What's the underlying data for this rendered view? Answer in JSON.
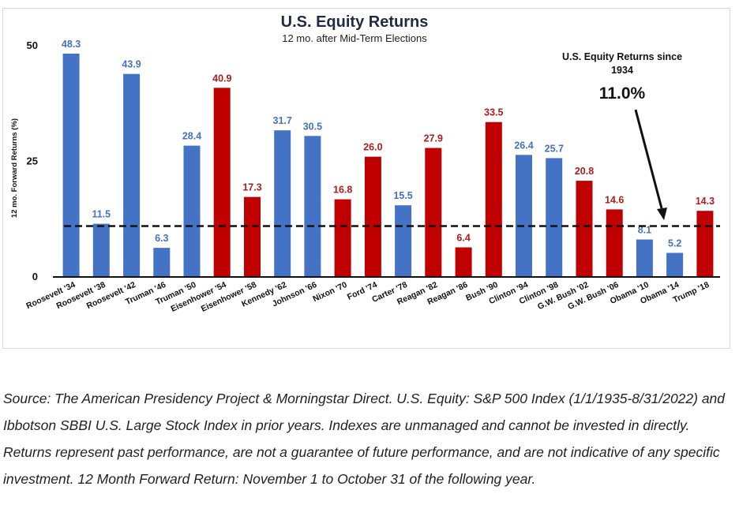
{
  "chart_data": {
    "type": "bar",
    "title": "U.S. Equity Returns",
    "subtitle": "12 mo. after Mid-Term Elections",
    "ylabel": "12 mo. Forward Returns (%)",
    "xlabel": "",
    "ylim": [
      0,
      50
    ],
    "yticks": [
      "0",
      "25",
      "50"
    ],
    "grid": false,
    "categories": [
      "Roosevelt '34",
      "Roosevelt '38",
      "Roosevelt '42",
      "Truman '46",
      "Truman '50",
      "Eisenhower '54",
      "Eisenhower '58",
      "Kennedy '62",
      "Johnson '66",
      "Nixon '70",
      "Ford '74",
      "Carter '78",
      "Reagan '82",
      "Reagan '86",
      "Bush '90",
      "Clinton '94",
      "Clinton '98",
      "G.W. Bush '02",
      "G.W. Bush '06",
      "Obama '10",
      "Obama '14",
      "Trump '18"
    ],
    "values": [
      48.3,
      11.5,
      43.9,
      6.3,
      28.4,
      40.9,
      17.3,
      31.7,
      30.5,
      16.8,
      26.0,
      15.5,
      27.9,
      6.4,
      33.5,
      26.4,
      25.7,
      20.8,
      14.6,
      8.1,
      5.2,
      14.3
    ],
    "labels": [
      "48.3",
      "11.5",
      "43.9",
      "6.3",
      "28.4",
      "40.9",
      "17.3",
      "31.7",
      "30.5",
      "16.8",
      "26.0",
      "15.5",
      "27.9",
      "6.4",
      "33.5",
      "26.4",
      "25.7",
      "20.8",
      "14.6",
      "8.1",
      "5.2",
      "14.3"
    ],
    "party": [
      "D",
      "D",
      "D",
      "D",
      "D",
      "R",
      "R",
      "D",
      "D",
      "R",
      "R",
      "D",
      "R",
      "R",
      "R",
      "D",
      "D",
      "R",
      "R",
      "D",
      "D",
      "R"
    ],
    "colors": {
      "D": "#4472c4",
      "R": "#c00000"
    },
    "label_colors": {
      "D": "#4472c4",
      "R": "#b01c1c"
    },
    "reference_line": {
      "value": 11.0,
      "style": "dashed"
    },
    "annotation": {
      "line1": "U.S. Equity Returns since",
      "line2": "1934",
      "value": "11.0%"
    }
  },
  "source_note": "Source: The American Presidency Project & Morningstar Direct. U.S. Equity: S&P 500 Index (1/1/1935-8/31/2022) and Ibbotson SBBI U.S. Large Stock Index in prior years. Indexes are unmanaged and cannot be invested in directly. Returns represent past performance, are not a guarantee of future performance, and are not indicative of any specific investment. 12 Month Forward Return: November 1 to October 31 of the following year."
}
